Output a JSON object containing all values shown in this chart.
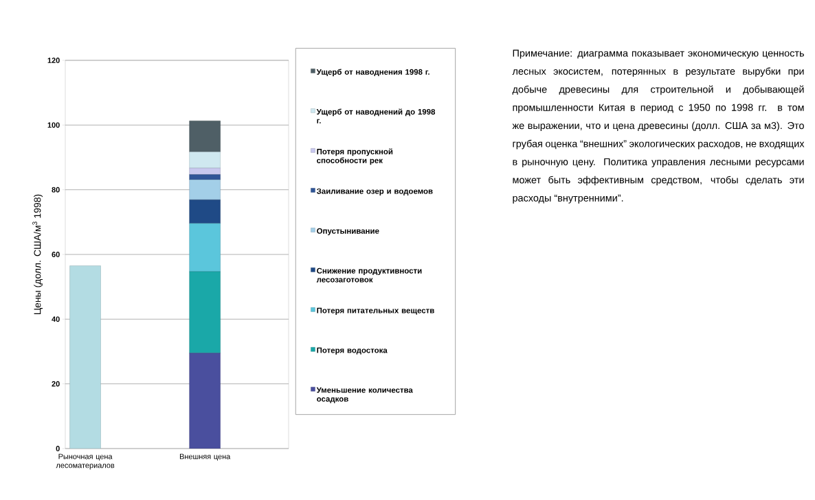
{
  "chart_data": {
    "type": "bar",
    "stacked": true,
    "ylabel": "Цены  (долл. США/м$^{3}$ 1998)",
    "categories": [
      "Рыночная цена лесоматериалов",
      "Внешняя цена"
    ],
    "ylim": [
      0,
      120
    ],
    "yticks": [
      0,
      20,
      40,
      60,
      80,
      100,
      120
    ],
    "grid": "y",
    "legend": "right",
    "series": [
      {
        "color": "#b3dce3",
        "values": [
          56.5,
          null
        ]
      },
      {
        "name": "Уменьшение количества осадков",
        "color": "#4a4f9e",
        "values": [
          null,
          29.5
        ]
      },
      {
        "name": "Потеря водостока",
        "color": "#1aa8a8",
        "values": [
          null,
          25.2
        ]
      },
      {
        "name": "Потеря питательных веществ",
        "color": "#5bc6dc",
        "values": [
          null,
          14.9
        ]
      },
      {
        "name": "Снижение продуктивности лесозаготовок",
        "color": "#1f4a86",
        "values": [
          null,
          7.3
        ]
      },
      {
        "name": "Опустынивание",
        "color": "#a3cfe8",
        "values": [
          null,
          6.2
        ]
      },
      {
        "name": "Заиливание озер и водоемов",
        "color": "#2f5597",
        "values": [
          null,
          1.6
        ]
      },
      {
        "name": "Потеря пропускной способности рек",
        "color": "#c8c8ee",
        "values": [
          null,
          2.0
        ]
      },
      {
        "name": "Ущерб от наводнений до 1998 г.",
        "color": "#cfe8f0",
        "values": [
          null,
          5.0
        ]
      },
      {
        "name": "Ущерб от наводнения 1998 г.",
        "color": "#4f5f66",
        "values": [
          null,
          9.6
        ]
      }
    ],
    "annotations": [
      "Примечание: диаграмма показывает экономическую ценность лесных экосистем, потерянных в результате вырубки при добыче древесины для строительной и добывающей промышленности Китая в период с 1950 по 1998 гг. в том же выражении, что и цена древесины (долл. США за м3). Это грубая оценка “внешних” экологических расходов, не входящих в рыночную цену. Политика управления лесными ресурсами может быть эффективным средством, чтобы сделать эти расходы “внутренними”."
    ]
  }
}
